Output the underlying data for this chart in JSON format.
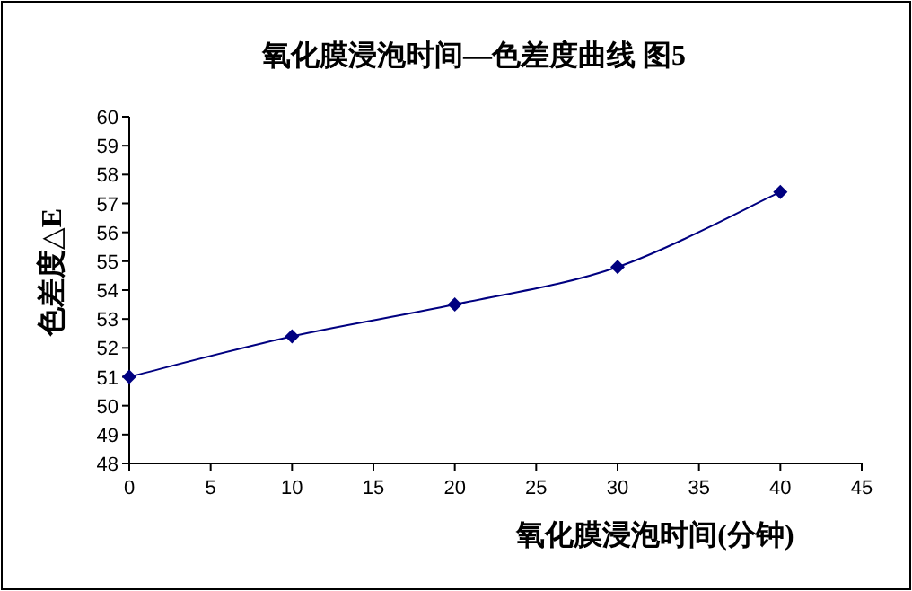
{
  "chart_data": {
    "type": "line",
    "title": "氧化膜浸泡时间—色差度曲线 图5",
    "xlabel": "氧化膜浸泡时间(分钟)",
    "ylabel": "色差度△E",
    "x": [
      0,
      10,
      20,
      30,
      40
    ],
    "series": [
      {
        "color": "#000080",
        "values": [
          51.0,
          52.4,
          53.5,
          54.8,
          57.4
        ]
      }
    ],
    "xlim": [
      0,
      45
    ],
    "xticks": [
      0,
      5,
      10,
      15,
      20,
      25,
      30,
      35,
      40,
      45
    ],
    "ylim": [
      48,
      60
    ],
    "yticks": [
      48,
      49,
      50,
      51,
      52,
      53,
      54,
      55,
      56,
      57,
      58,
      59,
      60
    ],
    "marker": "diamond",
    "line_style": "solid"
  }
}
